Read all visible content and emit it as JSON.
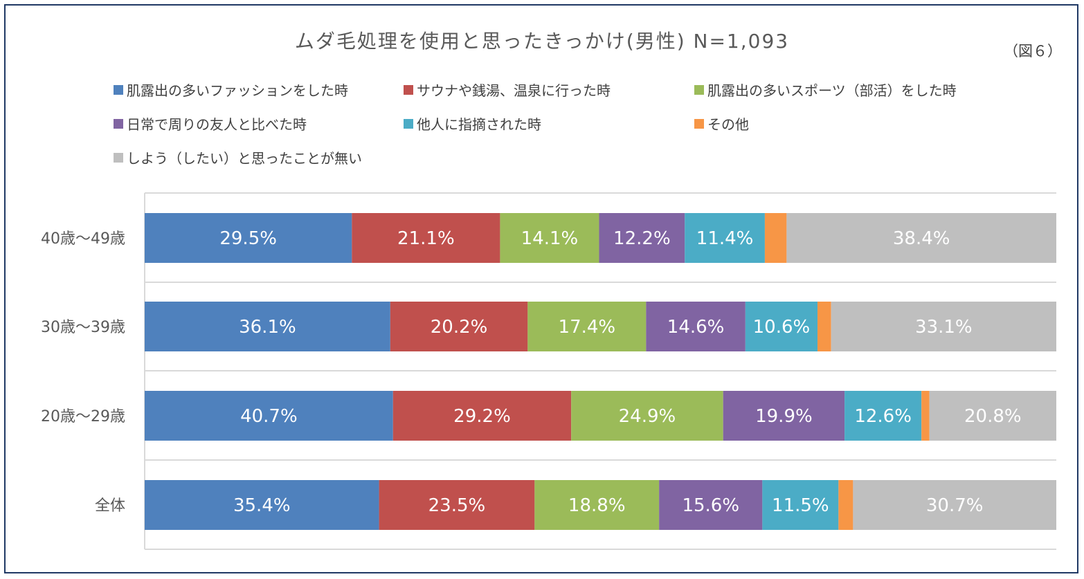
{
  "title": "ムダ毛処理を使用と思ったきっかけ(男性) N=1,093",
  "figure_label": "（図６）",
  "chart_data": {
    "type": "bar",
    "orientation": "horizontal",
    "stacked": "100%",
    "categories": [
      "40歳～49歳",
      "30歳～39歳",
      "20歳～29歳",
      "全体"
    ],
    "series": [
      {
        "name": "肌露出の多いファッションをした時",
        "color": "#4f81bd",
        "values": [
          29.5,
          36.1,
          40.7,
          35.4
        ]
      },
      {
        "name": "サウナや銭湯、温泉に行った時",
        "color": "#c0504d",
        "values": [
          21.1,
          20.2,
          29.2,
          23.5
        ]
      },
      {
        "name": "肌露出の多いスポーツ（部活）をした時",
        "color": "#9bbb59",
        "values": [
          14.1,
          17.4,
          24.9,
          18.8
        ]
      },
      {
        "name": "日常で周りの友人と比べた時",
        "color": "#8064a2",
        "values": [
          12.2,
          14.6,
          19.9,
          15.6
        ]
      },
      {
        "name": "他人に指摘された時",
        "color": "#4bacc6",
        "values": [
          11.4,
          10.6,
          12.6,
          11.5
        ]
      },
      {
        "name": "その他",
        "color": "#f79646",
        "values": [
          3.1,
          2.0,
          1.3,
          2.2
        ]
      },
      {
        "name": "しよう（したい）と思ったことが無い",
        "color": "#bfbfbf",
        "values": [
          38.4,
          33.1,
          20.8,
          30.7
        ]
      }
    ],
    "value_suffix": "%",
    "labeled_series": [
      0,
      1,
      2,
      3,
      4,
      6
    ],
    "legend_position": "top",
    "grid": true
  }
}
